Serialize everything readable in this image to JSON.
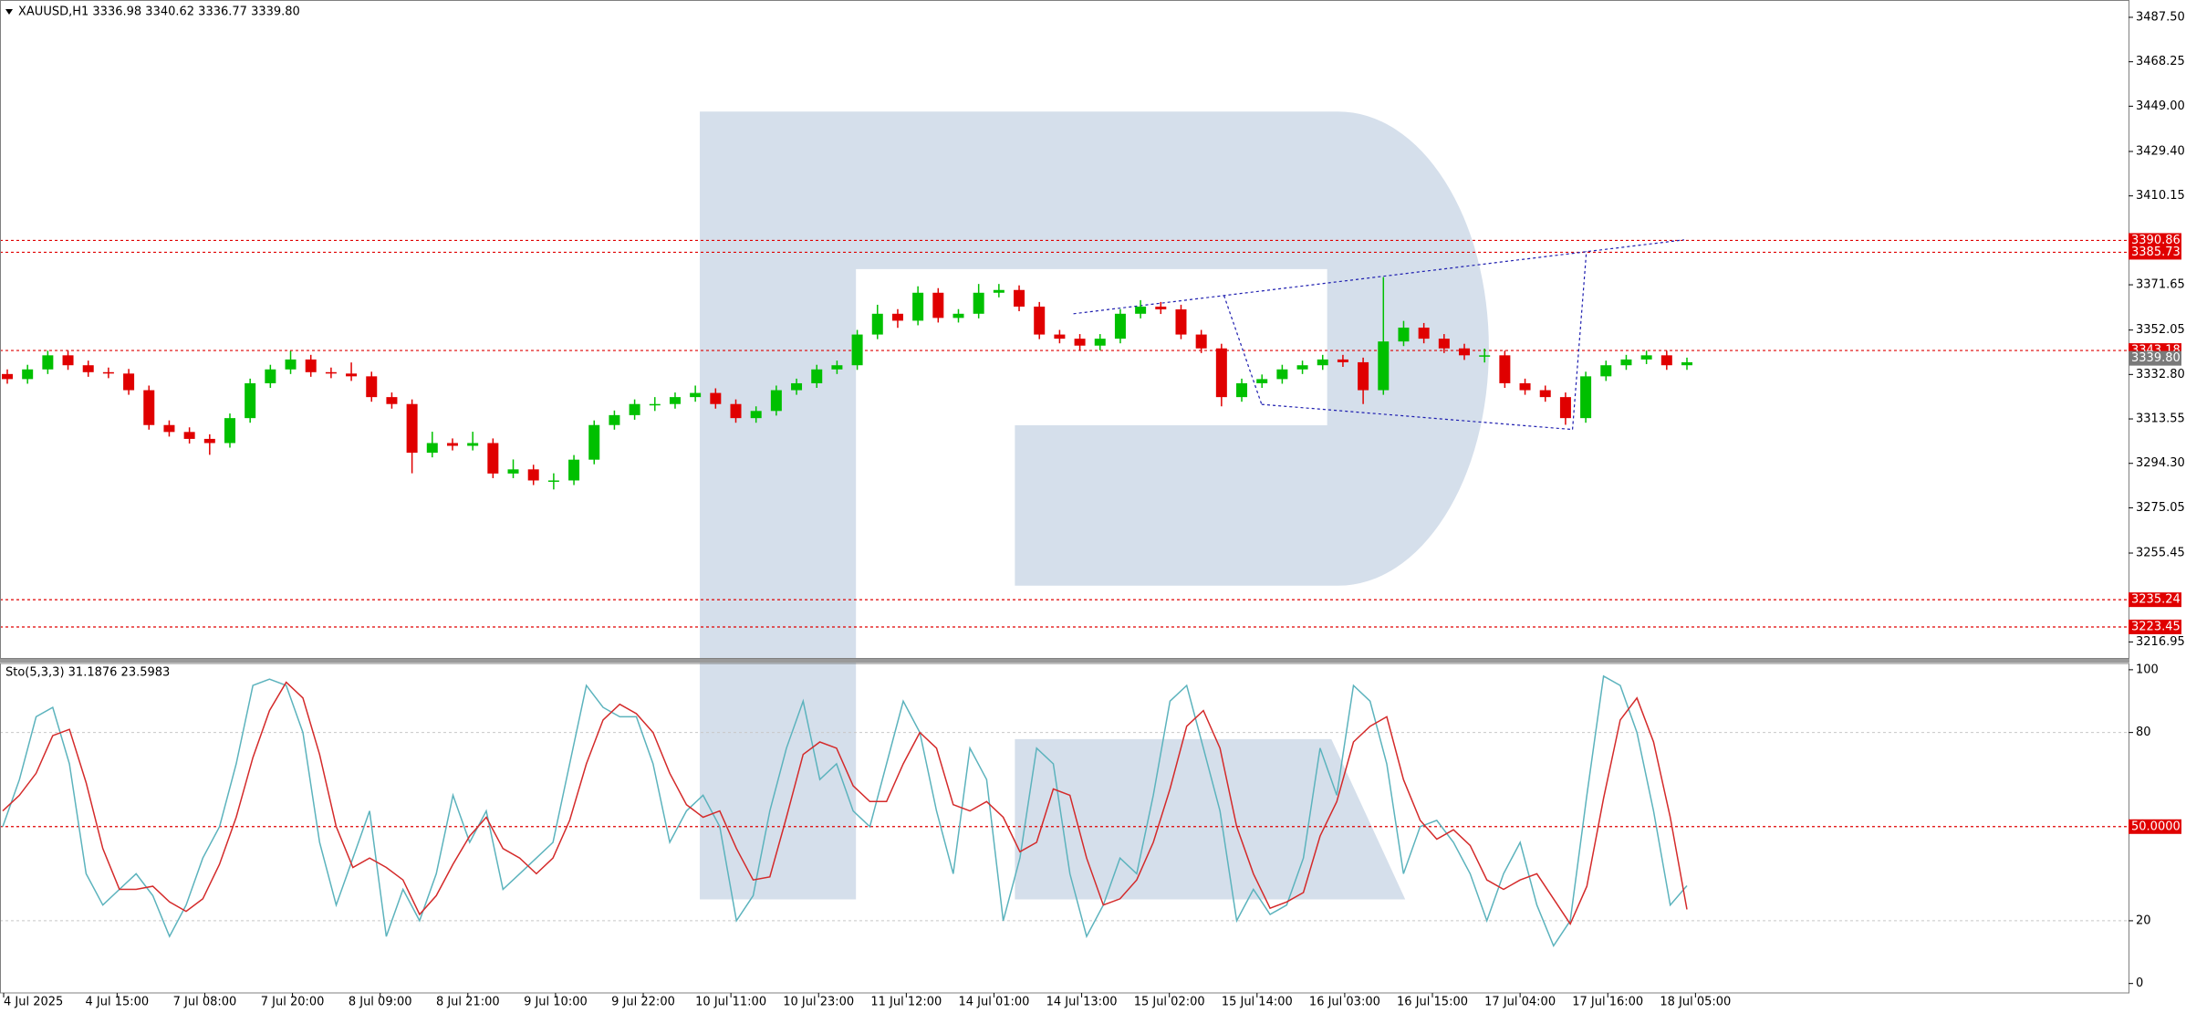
{
  "chart_data": {
    "type": "candlestick",
    "header": "XAUUSD,H1  3336.98 3340.62 3336.77 3339.80",
    "candles": {
      "open": [
        3333.0,
        3330.8,
        3335.0,
        3341.1,
        3336.8,
        3333.8,
        3333.2,
        3326.0,
        3310.9,
        3307.9,
        3304.9,
        3303.1,
        3313.9,
        3329.0,
        3335.0,
        3339.3,
        3333.8,
        3333.2,
        3332.0,
        3323.0,
        3320.0,
        3298.9,
        3303.1,
        3301.9,
        3303.1,
        3289.9,
        3291.7,
        3286.9,
        3286.9,
        3295.9,
        3310.9,
        3315.2,
        3320.0,
        3320.0,
        3323.0,
        3324.8,
        3320.0,
        3313.9,
        3317.0,
        3326.0,
        3329.0,
        3335.0,
        3336.8,
        3350.1,
        3359.1,
        3356.1,
        3368.2,
        3357.3,
        3359.1,
        3368.2,
        3369.4,
        3362.2,
        3350.1,
        3348.3,
        3345.3,
        3348.3,
        3359.1,
        3362.2,
        3361.0,
        3350.1,
        3344.1,
        3323.0,
        3329.0,
        3330.8,
        3335.0,
        3336.8,
        3339.3,
        3338.1,
        3326.0,
        3347.1,
        3353.1,
        3348.3,
        3344.1,
        3341.1,
        3341.1,
        3329.0,
        3326.0,
        3323.0,
        3313.9,
        3332.0,
        3336.8,
        3339.3,
        3341.1,
        3336.8
      ],
      "high": [
        3335.0,
        3337.0,
        3343.1,
        3343.1,
        3338.8,
        3335.8,
        3335.2,
        3328.0,
        3312.9,
        3309.9,
        3306.9,
        3315.9,
        3331.0,
        3337.0,
        3343.0,
        3341.3,
        3335.8,
        3338.0,
        3334.0,
        3325.0,
        3322.0,
        3308.0,
        3305.1,
        3308.0,
        3305.1,
        3296.0,
        3293.7,
        3290.0,
        3297.9,
        3312.9,
        3317.2,
        3322.0,
        3323.0,
        3325.0,
        3328.0,
        3326.8,
        3322.0,
        3319.0,
        3328.0,
        3331.0,
        3337.0,
        3338.8,
        3352.1,
        3363.0,
        3361.1,
        3371.0,
        3370.2,
        3361.1,
        3372.0,
        3372.0,
        3371.4,
        3364.2,
        3352.1,
        3350.3,
        3350.3,
        3361.1,
        3365.0,
        3364.2,
        3363.0,
        3352.1,
        3346.1,
        3331.0,
        3332.8,
        3337.0,
        3338.8,
        3341.3,
        3341.3,
        3340.1,
        3375.0,
        3356.0,
        3355.1,
        3350.3,
        3346.1,
        3344.0,
        3343.1,
        3331.0,
        3328.0,
        3325.0,
        3334.0,
        3338.8,
        3341.3,
        3343.1,
        3343.1,
        3340.1
      ],
      "low": [
        3328.8,
        3328.8,
        3333.0,
        3334.8,
        3331.8,
        3331.2,
        3324.0,
        3308.9,
        3305.9,
        3302.9,
        3298.0,
        3301.1,
        3311.9,
        3327.0,
        3333.0,
        3331.8,
        3331.2,
        3330.0,
        3321.0,
        3318.0,
        3290.0,
        3296.9,
        3299.9,
        3299.9,
        3287.9,
        3287.9,
        3284.9,
        3283.0,
        3284.9,
        3293.9,
        3308.9,
        3313.2,
        3317.0,
        3318.0,
        3321.0,
        3318.0,
        3311.9,
        3311.9,
        3315.0,
        3324.0,
        3327.0,
        3333.0,
        3334.8,
        3348.1,
        3353.0,
        3354.1,
        3355.3,
        3355.3,
        3357.1,
        3366.2,
        3360.2,
        3348.1,
        3346.3,
        3343.3,
        3343.3,
        3346.3,
        3357.1,
        3359.0,
        3348.1,
        3342.1,
        3319.0,
        3321.0,
        3327.0,
        3328.8,
        3333.0,
        3334.8,
        3336.1,
        3320.0,
        3324.0,
        3345.1,
        3346.3,
        3342.1,
        3339.1,
        3338.0,
        3327.0,
        3324.0,
        3321.0,
        3311.0,
        3311.9,
        3330.0,
        3334.8,
        3337.3,
        3334.8,
        3334.8
      ],
      "close": [
        3330.8,
        3335.0,
        3341.1,
        3336.8,
        3333.8,
        3333.2,
        3326.0,
        3310.9,
        3307.9,
        3304.9,
        3303.1,
        3313.9,
        3329.0,
        3335.0,
        3339.3,
        3333.8,
        3333.2,
        3332.0,
        3323.0,
        3320.0,
        3298.9,
        3303.1,
        3301.9,
        3303.1,
        3289.9,
        3291.7,
        3286.9,
        3286.9,
        3295.9,
        3310.9,
        3315.2,
        3320.0,
        3320.0,
        3323.0,
        3324.8,
        3320.0,
        3313.9,
        3317.0,
        3326.0,
        3329.0,
        3335.0,
        3336.8,
        3350.1,
        3359.1,
        3356.1,
        3368.2,
        3357.3,
        3359.1,
        3368.2,
        3369.4,
        3362.2,
        3350.1,
        3348.3,
        3345.3,
        3348.3,
        3359.1,
        3362.2,
        3361.0,
        3350.1,
        3344.1,
        3323.0,
        3329.0,
        3330.8,
        3335.0,
        3336.8,
        3339.3,
        3338.1,
        3326.0,
        3347.1,
        3353.1,
        3348.3,
        3344.1,
        3341.1,
        3341.1,
        3329.0,
        3326.0,
        3323.0,
        3313.9,
        3332.0,
        3336.8,
        3339.3,
        3341.1,
        3336.8,
        3338.1
      ]
    },
    "up_color": "#00c000",
    "down_color": "#e00000",
    "ylim": [
      3210,
      3495
    ],
    "yticks": [
      {
        "value": 3487.5,
        "label": "3487.50"
      },
      3468.25,
      {
        "value": 3449,
        "label": "3449.00"
      },
      {
        "value": 3429.4,
        "label": "3429.40"
      },
      3410.15,
      3371.65,
      3352.05,
      {
        "value": 3332.8,
        "label": "3332.80"
      },
      3313.55,
      {
        "value": 3294.3,
        "label": "3294.30"
      },
      3275.05,
      3255.45,
      3216.95
    ],
    "levels": [
      3390.86,
      3385.73,
      3343.18,
      3235.24,
      3223.45
    ],
    "level_color": "#e00000",
    "current_price": {
      "value": 3339.8,
      "label": "3339.80"
    },
    "categories": [
      "4 Jul 2025",
      "4 Jul 15:00",
      "7 Jul 08:00",
      "7 Jul 20:00",
      "8 Jul 09:00",
      "8 Jul 21:00",
      "9 Jul 10:00",
      "9 Jul 22:00",
      "10 Jul 11:00",
      "10 Jul 23:00",
      "11 Jul 12:00",
      "14 Jul 01:00",
      "14 Jul 13:00",
      "15 Jul 02:00",
      "15 Jul 14:00",
      "16 Jul 03:00",
      "16 Jul 15:00",
      "17 Jul 04:00",
      "17 Jul 16:00",
      "18 Jul 05:00"
    ],
    "indicator": {
      "type": "line",
      "title": "Sto(5,3,3) 31.1876 23.5983",
      "ylim": [
        -3,
        102
      ],
      "yticks": [
        0,
        20,
        80,
        100
      ],
      "grid_levels": [
        20,
        80
      ],
      "level": {
        "value": 50,
        "label": "50.0000"
      },
      "series": [
        {
          "name": "%K",
          "color": "#5cb3bd",
          "values": [
            50,
            65,
            85,
            88,
            70,
            35,
            25,
            30,
            35,
            28,
            15,
            25,
            40,
            50,
            70,
            95,
            97,
            95,
            80,
            45,
            25,
            40,
            55,
            15,
            30,
            20,
            35,
            60,
            45,
            55,
            30,
            35,
            40,
            45,
            70,
            95,
            88,
            85,
            85,
            70,
            45,
            55,
            60,
            50,
            20,
            28,
            55,
            75,
            90,
            65,
            70,
            55,
            50,
            70,
            90,
            80,
            55,
            35,
            75,
            65,
            20,
            40,
            75,
            70,
            35,
            15,
            25,
            40,
            35,
            60,
            90,
            95,
            75,
            55,
            20,
            30,
            22,
            25,
            40,
            75,
            60,
            95,
            90,
            70,
            35,
            50,
            52,
            45,
            35,
            20,
            35,
            45,
            25,
            12,
            20,
            60,
            98,
            95,
            80,
            55,
            25,
            31.19
          ]
        },
        {
          "name": "%D",
          "color": "#d42a2a",
          "values": [
            55,
            60,
            67,
            79,
            81,
            64,
            43,
            30,
            30,
            31,
            26,
            23,
            27,
            38,
            53,
            72,
            87,
            96,
            91,
            73,
            50,
            37,
            40,
            37,
            33,
            22,
            28,
            38,
            47,
            53,
            43,
            40,
            35,
            40,
            52,
            70,
            84,
            89,
            86,
            80,
            67,
            57,
            53,
            55,
            43,
            33,
            34,
            53,
            73,
            77,
            75,
            63,
            58,
            58,
            70,
            80,
            75,
            57,
            55,
            58,
            53,
            42,
            45,
            62,
            60,
            40,
            25,
            27,
            33,
            45,
            62,
            82,
            87,
            75,
            50,
            35,
            24,
            26,
            29,
            47,
            58,
            77,
            82,
            85,
            65,
            52,
            46,
            49,
            44,
            33,
            30,
            33,
            35,
            27,
            19,
            31,
            59,
            84,
            91,
            77,
            53,
            23.6
          ]
        }
      ]
    }
  }
}
